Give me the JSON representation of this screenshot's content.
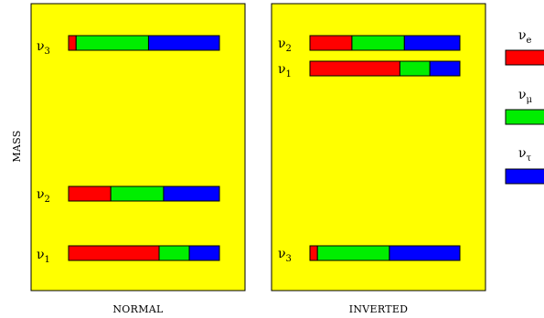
{
  "axis": {
    "ylabel": "MASS"
  },
  "colors": {
    "e": "#ff0000",
    "mu": "#00ee00",
    "tau": "#0000ff",
    "panel": "#ffff00"
  },
  "panels": [
    {
      "caption": "NORMAL",
      "states": [
        {
          "base": "ν",
          "sub": "3",
          "fractions": [
            0.05,
            0.48,
            0.47
          ]
        },
        {
          "base": "ν",
          "sub": "2",
          "fractions": [
            0.28,
            0.35,
            0.37
          ]
        },
        {
          "base": "ν",
          "sub": "1",
          "fractions": [
            0.6,
            0.2,
            0.2
          ]
        }
      ]
    },
    {
      "caption": "INVERTED",
      "states": [
        {
          "base": "ν",
          "sub": "2",
          "fractions": [
            0.28,
            0.35,
            0.37
          ]
        },
        {
          "base": "ν",
          "sub": "1",
          "fractions": [
            0.6,
            0.2,
            0.2
          ]
        },
        {
          "base": "ν",
          "sub": "3",
          "fractions": [
            0.05,
            0.48,
            0.47
          ]
        }
      ]
    }
  ],
  "legend": [
    {
      "base": "ν",
      "sub": "e",
      "key": "e"
    },
    {
      "base": "ν",
      "sub": "μ",
      "key": "mu"
    },
    {
      "base": "ν",
      "sub": "τ",
      "key": "tau"
    }
  ]
}
